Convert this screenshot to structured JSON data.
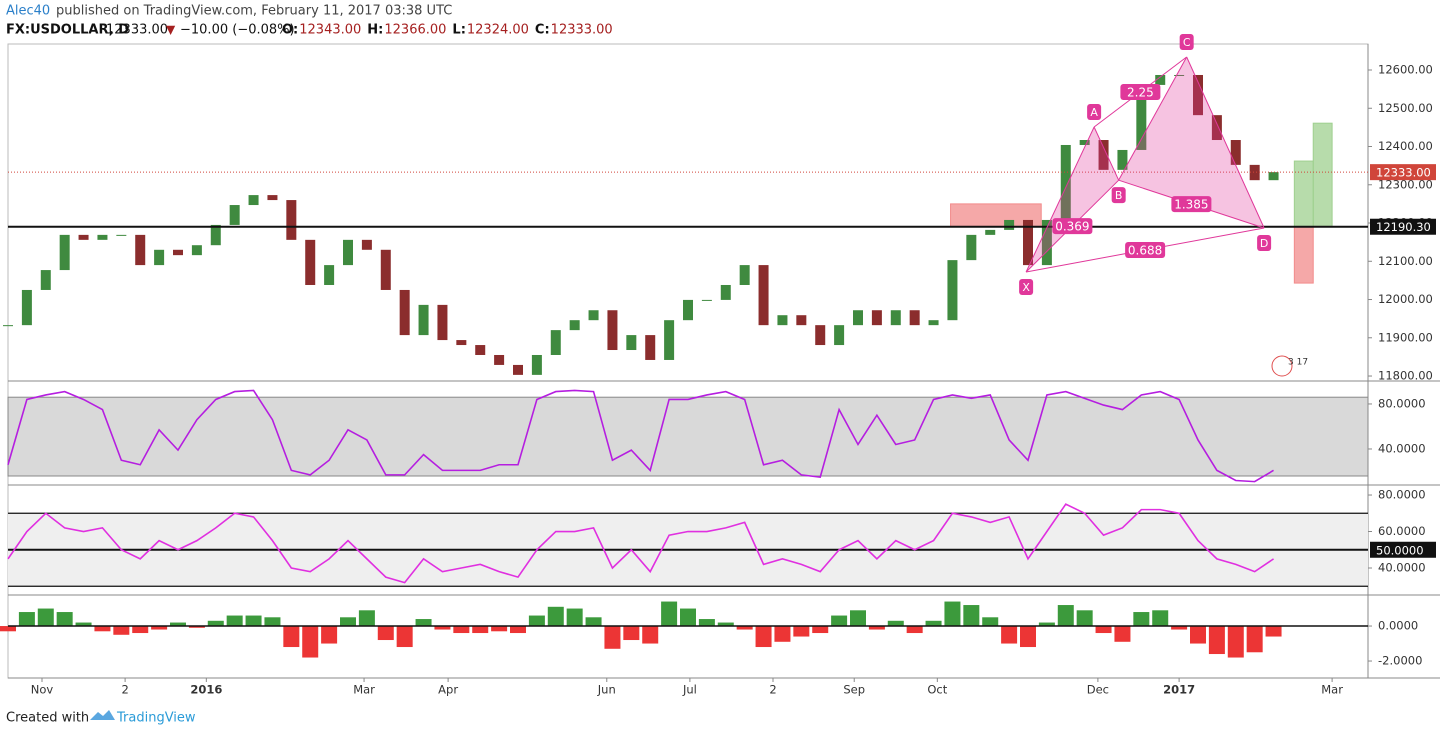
{
  "header": {
    "author": "Alec40",
    "published": "published on TradingView.com, February 11, 2017 03:38 UTC",
    "symbol": "FX:USDOLLAR, D",
    "last": "12333.00",
    "arrow": "▼",
    "change": "−10.00 (−0.08%)",
    "ohlc": [
      {
        "label": "O:",
        "value": "12343.00"
      },
      {
        "label": "H:",
        "value": "12366.00"
      },
      {
        "label": "L:",
        "value": "12324.00"
      },
      {
        "label": "C:",
        "value": "12333.00"
      }
    ]
  },
  "footer": {
    "created": "Created with",
    "brand": "TradingView"
  },
  "chart_data": [
    {
      "type": "candlestick",
      "x": [
        0,
        1,
        2,
        3,
        4,
        5,
        6,
        7,
        8,
        9,
        10,
        11,
        12,
        13,
        14,
        15,
        16,
        17,
        18,
        19,
        20,
        21,
        22,
        23,
        24,
        25,
        26,
        27,
        28,
        29,
        30,
        31,
        32,
        33,
        34,
        35,
        36,
        37,
        38,
        39,
        40,
        41,
        42,
        43,
        44,
        45,
        46,
        47,
        48,
        49,
        50,
        51,
        52,
        53,
        54,
        55,
        56,
        57,
        58,
        59,
        60,
        61,
        62,
        63,
        64,
        65,
        66,
        67
      ],
      "close": [
        11933,
        12025,
        12077,
        12169,
        12156,
        12169,
        12169,
        12090,
        12130,
        12116,
        12142,
        12195,
        12247,
        12273,
        12260,
        12156,
        12038,
        12090,
        12156,
        12130,
        12025,
        11907,
        11986,
        11894,
        11881,
        11855,
        11829,
        11803,
        11855,
        11920,
        11946,
        11972,
        11868,
        11907,
        11842,
        11946,
        11999,
        11999,
        12038,
        12090,
        11933,
        11959,
        11933,
        11881,
        11933,
        11972,
        11933,
        11972,
        11933,
        11946,
        12103,
        12169,
        12182,
        12208,
        12090,
        12208,
        12404,
        12417,
        12339,
        12391,
        12561,
        12587,
        12587,
        12482,
        12417,
        12352,
        12312,
        12333
      ],
      "up_color": "#3f8a3f",
      "down_color": "#8b2d2d",
      "xlim": [
        0,
        72
      ],
      "ylim": [
        11787,
        12668
      ],
      "yticks": [
        {
          "value": 11800,
          "label": "11800.00"
        },
        {
          "value": 11900,
          "label": "11900.00"
        },
        {
          "value": 12000,
          "label": "12000.00"
        },
        {
          "value": 12100,
          "label": "12100.00"
        },
        {
          "value": 12200,
          "label": "12200.00"
        },
        {
          "value": 12300,
          "label": "12300.00"
        },
        {
          "value": 12400,
          "label": "12400.00"
        },
        {
          "value": 12500,
          "label": "12500.00"
        },
        {
          "value": 12600,
          "label": "12600.00"
        }
      ],
      "hline": {
        "value": 12190.3,
        "label": "12190.30"
      },
      "last_price": {
        "value": 12333,
        "label": "12333.00",
        "color": "#d0453a"
      },
      "pattern": {
        "color": "#e0389a",
        "points": [
          {
            "label": "X",
            "x": 53.9,
            "y": 12072
          },
          {
            "label": "A",
            "x": 57.5,
            "y": 12451
          },
          {
            "label": "B",
            "x": 58.8,
            "y": 12312
          },
          {
            "label": "C",
            "x": 62.4,
            "y": 12634
          },
          {
            "label": "D",
            "x": 66.5,
            "y": 12187
          }
        ],
        "ratios": [
          "0.369",
          "2.25",
          "1.385",
          "0.688"
        ]
      },
      "boxes": [
        {
          "x0": 49.9,
          "x1": 54.7,
          "y0": 12190,
          "y1": 12250,
          "color": "#f28b8b"
        },
        {
          "x0": 68.1,
          "x1": 69.1,
          "y0": 12190,
          "y1": 12362,
          "color": "#9fd08f"
        },
        {
          "x0": 69.1,
          "x1": 70.1,
          "y0": 12190,
          "y1": 12461,
          "color": "#9fd08f"
        },
        {
          "x0": 68.1,
          "x1": 69.1,
          "y0": 12043,
          "y1": 12190,
          "color": "#f28b8b"
        }
      ],
      "event_badge": "3 17"
    },
    {
      "type": "line",
      "values": [
        26,
        84,
        88,
        91,
        84,
        75,
        30,
        26,
        57,
        39,
        66,
        84,
        91,
        92,
        66,
        21,
        17,
        30,
        57,
        48,
        17,
        17,
        35,
        21,
        21,
        21,
        26,
        26,
        84,
        91,
        92,
        91,
        30,
        39,
        21,
        84,
        84,
        88,
        91,
        84,
        26,
        30,
        17,
        15,
        75,
        44,
        70,
        44,
        48,
        84,
        88,
        85,
        88,
        48,
        30,
        88,
        91,
        85,
        79,
        75,
        88,
        91,
        84,
        48,
        21,
        12,
        11,
        21
      ],
      "color": "#b51ee0",
      "band": [
        16,
        86
      ],
      "band_color": "#d9d9d9",
      "xlim": [
        0,
        72
      ],
      "ylim": [
        8,
        100.4
      ],
      "yticks": [
        {
          "value": 40,
          "label": "40.0000"
        },
        {
          "value": 80,
          "label": "80.0000"
        }
      ]
    },
    {
      "type": "line",
      "values": [
        45,
        60,
        70,
        62,
        60,
        62,
        50,
        45,
        55,
        50,
        55,
        62,
        70,
        68,
        55,
        40,
        38,
        45,
        55,
        45,
        35,
        32,
        45,
        38,
        40,
        42,
        38,
        35,
        50,
        60,
        60,
        62,
        40,
        50,
        38,
        58,
        60,
        60,
        62,
        65,
        42,
        45,
        42,
        38,
        50,
        55,
        45,
        55,
        50,
        55,
        70,
        68,
        65,
        68,
        45,
        60,
        75,
        70,
        58,
        62,
        72,
        72,
        70,
        55,
        45,
        42,
        38,
        45
      ],
      "color": "#e030e0",
      "levels": [
        30,
        50,
        70
      ],
      "band_color": "#efefef",
      "xlim": [
        0,
        72
      ],
      "ylim": [
        25.2,
        84.4
      ],
      "yticks": [
        {
          "value": 40,
          "label": "40.0000"
        },
        {
          "value": 60,
          "label": "60.0000"
        },
        {
          "value": 80,
          "label": "80.0000"
        }
      ],
      "mid_label": {
        "value": 50,
        "label": "50.0000"
      }
    },
    {
      "type": "bar",
      "values": [
        -0.3,
        0.8,
        1.0,
        0.8,
        0.2,
        -0.3,
        -0.5,
        -0.4,
        -0.2,
        0.2,
        -0.1,
        0.3,
        0.6,
        0.6,
        0.5,
        -1.2,
        -1.8,
        -1.0,
        0.5,
        0.9,
        -0.8,
        -1.2,
        0.4,
        -0.2,
        -0.4,
        -0.4,
        -0.3,
        -0.4,
        0.6,
        1.1,
        1.0,
        0.5,
        -1.3,
        -0.8,
        -1.0,
        1.4,
        1.0,
        0.4,
        0.2,
        -0.2,
        -1.2,
        -0.9,
        -0.6,
        -0.4,
        0.6,
        0.9,
        -0.2,
        0.3,
        -0.4,
        0.3,
        1.4,
        1.2,
        0.5,
        -1.0,
        -1.2,
        0.2,
        1.2,
        0.9,
        -0.4,
        -0.9,
        0.8,
        0.9,
        -0.2,
        -1.0,
        -1.6,
        -1.8,
        -1.5,
        -0.6
      ],
      "up_color": "#3c9a3c",
      "down_color": "#ec3535",
      "xlim": [
        0,
        72
      ],
      "ylim": [
        -2.97,
        1.66
      ],
      "yticks": [
        {
          "value": -2,
          "label": "-2.0000"
        },
        {
          "value": 0,
          "label": "0.0000"
        }
      ],
      "xticks": [
        {
          "value": 1.8,
          "label": "Nov"
        },
        {
          "value": 6.2,
          "label": "2"
        },
        {
          "value": 10.5,
          "label": "2016"
        },
        {
          "value": 18.85,
          "label": "Mar"
        },
        {
          "value": 23.3,
          "label": "Apr"
        },
        {
          "value": 31.7,
          "label": "Jun"
        },
        {
          "value": 36.1,
          "label": "Jul"
        },
        {
          "value": 40.5,
          "label": "2"
        },
        {
          "value": 44.8,
          "label": "Sep"
        },
        {
          "value": 49.2,
          "label": "Oct"
        },
        {
          "value": 57.7,
          "label": "Dec"
        },
        {
          "value": 62.0,
          "label": "2017"
        },
        {
          "value": 70.1,
          "label": "Mar"
        }
      ]
    }
  ]
}
